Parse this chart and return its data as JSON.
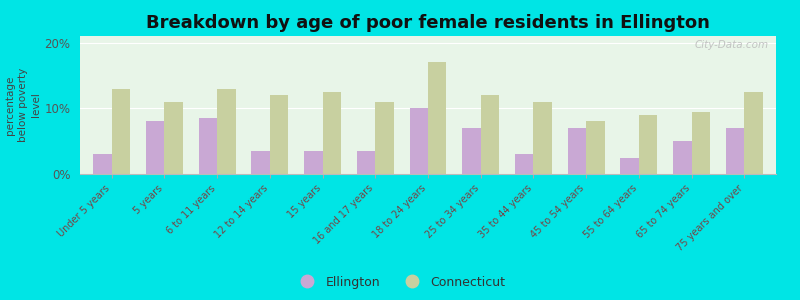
{
  "title": "Breakdown by age of poor female residents in Ellington",
  "ylabel": "percentage\nbelow poverty\nlevel",
  "categories": [
    "Under 5 years",
    "5 years",
    "6 to 11 years",
    "12 to 14 years",
    "15 years",
    "16 and 17 years",
    "18 to 24 years",
    "25 to 34 years",
    "35 to 44 years",
    "45 to 54 years",
    "55 to 64 years",
    "65 to 74 years",
    "75 years and over"
  ],
  "ellington": [
    3.0,
    8.0,
    8.5,
    3.5,
    3.5,
    3.5,
    10.0,
    7.0,
    3.0,
    7.0,
    2.5,
    5.0,
    7.0
  ],
  "connecticut": [
    13.0,
    11.0,
    13.0,
    12.0,
    12.5,
    11.0,
    17.0,
    12.0,
    11.0,
    8.0,
    9.0,
    9.5,
    12.5
  ],
  "ellington_color": "#c9a8d4",
  "connecticut_color": "#c8d0a0",
  "background_color": "#e8f5e8",
  "outer_background": "#00e5e5",
  "ylim": [
    0,
    21
  ],
  "yticks": [
    0,
    10,
    20
  ],
  "ytick_labels": [
    "0%",
    "10%",
    "20%"
  ],
  "bar_width": 0.35,
  "legend_ellington": "Ellington",
  "legend_connecticut": "Connecticut",
  "title_fontsize": 13,
  "ylabel_fontsize": 7.5,
  "tick_label_fontsize": 7,
  "watermark": "City-Data.com"
}
